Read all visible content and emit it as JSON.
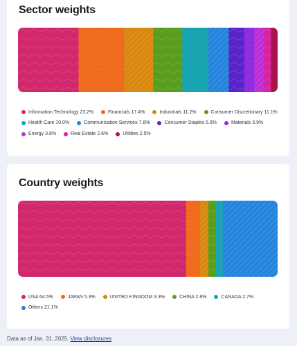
{
  "sector": {
    "title": "Sector weights",
    "chart_data": {
      "type": "bar",
      "title": "Sector weights",
      "orientation": "horizontal-stacked-100",
      "categories": [
        "Information Technology",
        "Financials",
        "Industrials",
        "Consumer Discretionary",
        "Health Care",
        "Communication Services",
        "Consumer Staples",
        "Materials",
        "Energy",
        "Real Estate",
        "Utilities"
      ],
      "values": [
        23.2,
        17.4,
        11.2,
        11.1,
        10.0,
        7.8,
        5.9,
        3.9,
        3.8,
        2.6,
        2.5
      ],
      "labels": [
        "Information Technology 23.2%",
        "Financials 17.4%",
        "Industrials 11.2%",
        "Consumer Discretionary 11.1%",
        "Health Care 10.0%",
        "Communication Services 7.8%",
        "Consumer Staples 5.9%",
        "Materials 3.9%",
        "Energy 3.8%",
        "Real Estate 2.6%",
        "Utilities 2.5%"
      ],
      "colors": [
        "#d1276b",
        "#f26c1f",
        "#d8870f",
        "#5a9d1e",
        "#1aa5b3",
        "#2484dc",
        "#5a23c8",
        "#8e2ee0",
        "#bb2ed6",
        "#d8239a",
        "#a8144c"
      ],
      "legend_rows": [
        [
          0,
          1,
          2,
          3
        ],
        [
          4,
          5,
          6,
          7
        ],
        [
          8,
          9,
          10
        ]
      ],
      "legend": "bottom",
      "grid": false
    }
  },
  "country": {
    "title": "Country weights",
    "chart_data": {
      "type": "bar",
      "title": "Country weights",
      "orientation": "horizontal-stacked-100",
      "categories": [
        "USA",
        "JAPAN",
        "UNITED KINGDOM",
        "CHINA",
        "CANADA",
        "Others"
      ],
      "values": [
        64.5,
        5.3,
        3.3,
        2.8,
        2.7,
        21.1
      ],
      "labels": [
        "USA 64.5%",
        "JAPAN 5.3%",
        "UNITED KINGDOM 3.3%",
        "CHINA 2.8%",
        "CANADA 2.7%",
        "Others 21.1%"
      ],
      "colors": [
        "#d1276b",
        "#f26c1f",
        "#d8870f",
        "#5a9d1e",
        "#1aa5b3",
        "#2484dc"
      ],
      "legend_rows": [
        [
          0,
          1,
          2,
          3,
          4
        ],
        [
          5
        ]
      ],
      "legend": "bottom",
      "grid": false
    }
  },
  "footer": {
    "date_text": "Data as of Jan. 31, 2025.",
    "link_text": "View disclosures"
  }
}
